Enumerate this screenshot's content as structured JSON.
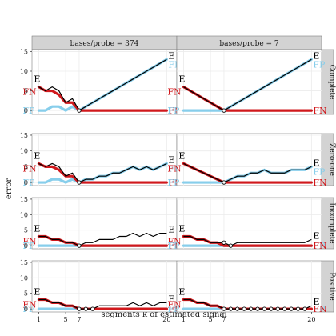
{
  "chart_data": {
    "type": "line",
    "xlabel": "segments k of estimated signal",
    "ylabel": "error",
    "x": [
      1,
      2,
      3,
      4,
      5,
      6,
      7,
      8,
      9,
      10,
      11,
      12,
      13,
      14,
      15,
      16,
      17,
      18,
      19,
      20
    ],
    "xticks": [
      1,
      5,
      7,
      20
    ],
    "xlim": [
      0,
      21.5
    ],
    "ylim": [
      -1,
      15.5
    ],
    "yticks": [
      0,
      5,
      10,
      15
    ],
    "columns": [
      "bases/probe = 374",
      "bases/probe = 7"
    ],
    "rows": [
      "Complete",
      "Zero-one",
      "Incomplete",
      "Positive"
    ],
    "series_labels": {
      "E": "E",
      "FP": "FP",
      "FN": "FN"
    },
    "colors": {
      "E": "#000000",
      "FP": "#87ceeb",
      "FN": "#d0181c",
      "strip": "#d3d3d3",
      "grid": "#ebebeb"
    },
    "panels": [
      {
        "row": "Complete",
        "col": "bases/probe = 374",
        "E": [
          6,
          5,
          6,
          5,
          2,
          3,
          0,
          1,
          2,
          3,
          4,
          5,
          6,
          7,
          8,
          9,
          10,
          11,
          12,
          13
        ],
        "FP": [
          0,
          0,
          1,
          1,
          0,
          1,
          0,
          1,
          2,
          3,
          4,
          5,
          6,
          7,
          8,
          9,
          10,
          11,
          12,
          13
        ],
        "FN": [
          6,
          5,
          5,
          4,
          2,
          2,
          0,
          0,
          0,
          0,
          0,
          0,
          0,
          0,
          0,
          0,
          0,
          0,
          0,
          0
        ]
      },
      {
        "row": "Complete",
        "col": "bases/probe = 7",
        "E": [
          6,
          5,
          4,
          3,
          2,
          1,
          0,
          1,
          2,
          3,
          4,
          5,
          6,
          7,
          8,
          9,
          10,
          11,
          12,
          13
        ],
        "FP": [
          0,
          0,
          0,
          0,
          0,
          0,
          0,
          1,
          2,
          3,
          4,
          5,
          6,
          7,
          8,
          9,
          10,
          11,
          12,
          13
        ],
        "FN": [
          6,
          5,
          4,
          3,
          2,
          1,
          0,
          0,
          0,
          0,
          0,
          0,
          0,
          0,
          0,
          0,
          0,
          0,
          0,
          0
        ]
      },
      {
        "row": "Zero-one",
        "col": "bases/probe = 374",
        "E": [
          6,
          5,
          6,
          5,
          2,
          3,
          0,
          1,
          1,
          2,
          2,
          3,
          3,
          4,
          5,
          4,
          5,
          4,
          5,
          6
        ],
        "FP": [
          0,
          0,
          1,
          1,
          0,
          1,
          0,
          1,
          1,
          2,
          2,
          3,
          3,
          4,
          5,
          4,
          5,
          4,
          5,
          6
        ],
        "FN": [
          6,
          5,
          5,
          4,
          2,
          2,
          0,
          0,
          0,
          0,
          0,
          0,
          0,
          0,
          0,
          0,
          0,
          0,
          0,
          0
        ]
      },
      {
        "row": "Zero-one",
        "col": "bases/probe = 7",
        "E": [
          6,
          5,
          4,
          3,
          2,
          1,
          0,
          1,
          2,
          2,
          3,
          3,
          4,
          3,
          3,
          3,
          4,
          4,
          4,
          5
        ],
        "FP": [
          0,
          0,
          0,
          0,
          0,
          0,
          0,
          1,
          2,
          2,
          3,
          3,
          4,
          3,
          3,
          3,
          4,
          4,
          4,
          5
        ],
        "FN": [
          6,
          5,
          4,
          3,
          2,
          1,
          0,
          0,
          0,
          0,
          0,
          0,
          0,
          0,
          0,
          0,
          0,
          0,
          0,
          0
        ]
      },
      {
        "row": "Incomplete",
        "col": "bases/probe = 374",
        "E": [
          3,
          3,
          2,
          2,
          1,
          1,
          0,
          1,
          1,
          2,
          2,
          2,
          3,
          3,
          4,
          3,
          4,
          3,
          4,
          4
        ],
        "FP": [
          0,
          0,
          0,
          0,
          0,
          0,
          0,
          0,
          0,
          0,
          0,
          0,
          0,
          0,
          0,
          0,
          0,
          0,
          0,
          0
        ],
        "FN": [
          3,
          3,
          2,
          2,
          1,
          1,
          0,
          0,
          0,
          0,
          0,
          0,
          0,
          0,
          0,
          0,
          0,
          0,
          0,
          0
        ]
      },
      {
        "row": "Incomplete",
        "col": "bases/probe = 7",
        "E": [
          3,
          3,
          2,
          2,
          1,
          1,
          1,
          0,
          1,
          1,
          1,
          1,
          1,
          1,
          1,
          1,
          1,
          1,
          1,
          2
        ],
        "FP": [
          0,
          0,
          0,
          0,
          0,
          0,
          0,
          0,
          0,
          0,
          0,
          0,
          0,
          0,
          0,
          0,
          0,
          0,
          0,
          0
        ],
        "FN": [
          3,
          3,
          2,
          2,
          1,
          1,
          0,
          0,
          0,
          0,
          0,
          0,
          0,
          0,
          0,
          0,
          0,
          0,
          0,
          0
        ]
      },
      {
        "row": "Positive",
        "col": "bases/probe = 374",
        "E": [
          3,
          3,
          2,
          2,
          1,
          1,
          0,
          0,
          0,
          1,
          1,
          1,
          1,
          1,
          2,
          1,
          2,
          1,
          2,
          2
        ],
        "FP": [
          0,
          0,
          0,
          0,
          0,
          0,
          0,
          0,
          0,
          0,
          0,
          0,
          0,
          0,
          0,
          0,
          0,
          0,
          0,
          0
        ],
        "FN": [
          3,
          3,
          2,
          2,
          1,
          1,
          0,
          0,
          0,
          0,
          0,
          0,
          0,
          0,
          0,
          0,
          0,
          0,
          0,
          0
        ]
      },
      {
        "row": "Positive",
        "col": "bases/probe = 7",
        "E": [
          3,
          3,
          2,
          2,
          1,
          1,
          0,
          0,
          0,
          0,
          0,
          0,
          0,
          0,
          0,
          0,
          0,
          0,
          0,
          1
        ],
        "FP": [
          0,
          0,
          0,
          0,
          0,
          0,
          0,
          0,
          0,
          0,
          0,
          0,
          0,
          0,
          0,
          0,
          0,
          0,
          0,
          0
        ],
        "FN": [
          3,
          3,
          2,
          2,
          1,
          1,
          0,
          0,
          0,
          0,
          0,
          0,
          0,
          0,
          0,
          0,
          0,
          0,
          0,
          0
        ]
      }
    ],
    "open_circle_markers": {
      "Complete|bases/probe = 374": [
        7
      ],
      "Complete|bases/probe = 7": [
        7
      ],
      "Zero-one|bases/probe = 374": [
        7
      ],
      "Zero-one|bases/probe = 7": [
        7
      ],
      "Incomplete|bases/probe = 374": [
        7
      ],
      "Incomplete|bases/probe = 7": [
        7,
        8
      ],
      "Positive|bases/probe = 374": [
        7,
        8,
        9
      ],
      "Positive|bases/probe = 7": [
        7,
        8,
        9,
        10,
        11,
        12,
        13,
        14,
        15,
        16,
        17,
        18,
        19
      ]
    }
  }
}
